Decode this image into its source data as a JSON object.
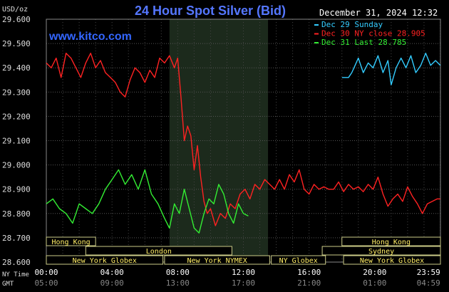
{
  "chart_data": {
    "type": "line",
    "title": "24 Hour Spot Silver (Bid)",
    "ylabel": "USD/oz",
    "watermark": "www.kitco.com",
    "timestamp": "December 31, 2024 12:32",
    "ylim": [
      28.6,
      29.6
    ],
    "yticks": [
      "29.600",
      "29.500",
      "29.400",
      "29.300",
      "29.200",
      "29.100",
      "29.000",
      "28.900",
      "28.800",
      "28.700",
      "28.600"
    ],
    "xlim": [
      0,
      24
    ],
    "xticks_ny": [
      "00:00",
      "04:00",
      "08:00",
      "12:00",
      "16:00",
      "20:00",
      "23:59"
    ],
    "xticks_gmt": [
      "05:00",
      "09:00",
      "13:00",
      "17:00",
      "21:00",
      "01:00",
      "04:59"
    ],
    "row_labels": {
      "ny": "NY Time",
      "gmt": "GMT"
    },
    "shaded_hours": [
      7.5,
      13.5
    ],
    "legend": [
      {
        "label": "Dec 29 Sunday",
        "color": "#33ccff"
      },
      {
        "label": "Dec 30 NY close 28.905",
        "color": "#ff2222"
      },
      {
        "label": "Dec 31 Last 28.785",
        "color": "#33ee33"
      }
    ],
    "sessions": [
      {
        "label": "Hong Kong",
        "start": 0,
        "end": 3.0,
        "row": 0
      },
      {
        "label": "London",
        "start": 2.4,
        "end": 11.3,
        "row": 1
      },
      {
        "label": "New York Globex",
        "start": 0,
        "end": 7.1,
        "row": 2
      },
      {
        "label": "New York NYMEX",
        "start": 7.2,
        "end": 13.6,
        "row": 2
      },
      {
        "label": "NY Globex",
        "start": 13.7,
        "end": 17.0,
        "row": 2
      },
      {
        "label": "Hong Kong",
        "start": 18.0,
        "end": 24,
        "row": 0
      },
      {
        "label": "Sydney",
        "start": 16.8,
        "end": 24,
        "row": 1
      },
      {
        "label": "New York Globex",
        "start": 18.1,
        "end": 24,
        "row": 2
      }
    ],
    "series": [
      {
        "name": "Dec 29 Sunday",
        "color": "#33ccff",
        "x": [
          18.0,
          18.4,
          18.6,
          18.8,
          19.0,
          19.3,
          19.6,
          19.9,
          20.2,
          20.5,
          20.8,
          21.0,
          21.3,
          21.6,
          21.9,
          22.2,
          22.5,
          22.8,
          23.1,
          23.4,
          23.7,
          23.99
        ],
        "y": [
          29.36,
          29.36,
          29.38,
          29.41,
          29.44,
          29.38,
          29.42,
          29.4,
          29.45,
          29.38,
          29.43,
          29.33,
          29.4,
          29.44,
          29.4,
          29.45,
          29.38,
          29.41,
          29.46,
          29.41,
          29.43,
          29.41
        ]
      },
      {
        "name": "Dec 30 NY close 28.905",
        "color": "#ff2222",
        "x": [
          0,
          0.3,
          0.6,
          0.9,
          1.2,
          1.5,
          1.8,
          2.1,
          2.4,
          2.7,
          3.0,
          3.3,
          3.6,
          3.9,
          4.2,
          4.5,
          4.8,
          5.1,
          5.4,
          5.7,
          6.0,
          6.3,
          6.6,
          6.9,
          7.2,
          7.5,
          7.8,
          8.0,
          8.2,
          8.4,
          8.6,
          8.8,
          9.0,
          9.2,
          9.4,
          9.6,
          9.8,
          10.0,
          10.3,
          10.6,
          10.9,
          11.2,
          11.5,
          11.8,
          12.1,
          12.4,
          12.7,
          13.0,
          13.3,
          13.6,
          13.9,
          14.2,
          14.5,
          14.8,
          15.1,
          15.4,
          15.7,
          16.0,
          16.3,
          16.6,
          16.9,
          17.2,
          17.5,
          17.8,
          18.1,
          18.4,
          18.7,
          19.0,
          19.3,
          19.6,
          19.9,
          20.2,
          20.5,
          20.8,
          21.1,
          21.4,
          21.7,
          22.0,
          22.3,
          22.6,
          22.9,
          23.2,
          23.5,
          23.8,
          23.99
        ],
        "y": [
          29.42,
          29.4,
          29.44,
          29.36,
          29.46,
          29.44,
          29.4,
          29.36,
          29.42,
          29.46,
          29.4,
          29.43,
          29.38,
          29.36,
          29.34,
          29.3,
          29.28,
          29.35,
          29.4,
          29.38,
          29.34,
          29.39,
          29.36,
          29.44,
          29.42,
          29.45,
          29.4,
          29.44,
          29.28,
          29.1,
          29.16,
          29.12,
          28.98,
          29.08,
          28.95,
          28.85,
          28.8,
          28.82,
          28.75,
          28.8,
          28.78,
          28.84,
          28.82,
          28.88,
          28.9,
          28.86,
          28.92,
          28.9,
          28.94,
          28.92,
          28.9,
          28.94,
          28.9,
          28.96,
          28.93,
          28.98,
          28.9,
          28.88,
          28.92,
          28.9,
          28.91,
          28.9,
          28.9,
          28.93,
          28.89,
          28.92,
          28.9,
          28.91,
          28.89,
          28.92,
          28.9,
          28.95,
          28.88,
          28.83,
          28.86,
          28.88,
          28.85,
          28.91,
          28.87,
          28.84,
          28.8,
          28.84,
          28.85,
          28.86,
          28.86
        ]
      },
      {
        "name": "Dec 31 Last 28.785",
        "color": "#33ee33",
        "x": [
          0,
          0.4,
          0.8,
          1.2,
          1.6,
          2.0,
          2.4,
          2.8,
          3.2,
          3.6,
          4.0,
          4.4,
          4.8,
          5.2,
          5.6,
          6.0,
          6.4,
          6.8,
          7.2,
          7.5,
          7.8,
          8.1,
          8.4,
          8.7,
          9.0,
          9.3,
          9.6,
          9.9,
          10.2,
          10.5,
          10.8,
          11.1,
          11.4,
          11.7,
          12.0,
          12.3
        ],
        "y": [
          28.84,
          28.86,
          28.82,
          28.8,
          28.76,
          28.84,
          28.82,
          28.8,
          28.84,
          28.9,
          28.94,
          28.98,
          28.92,
          28.96,
          28.9,
          28.98,
          28.88,
          28.84,
          28.78,
          28.74,
          28.84,
          28.8,
          28.9,
          28.82,
          28.74,
          28.72,
          28.8,
          28.86,
          28.84,
          28.92,
          28.88,
          28.8,
          28.76,
          28.84,
          28.8,
          28.79
        ]
      }
    ]
  }
}
